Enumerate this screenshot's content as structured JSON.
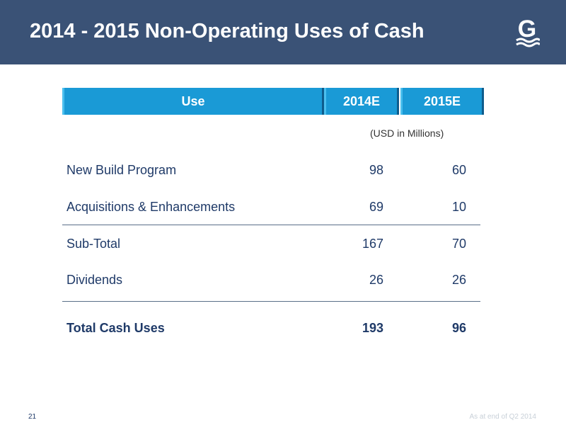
{
  "title": "2014 - 2015 Non-Operating Uses of Cash",
  "logo_letter": "G",
  "table": {
    "headers": [
      "Use",
      "2014E",
      "2015E"
    ],
    "units_note": "(USD in Millions)",
    "rows": [
      {
        "label": "New Build Program",
        "y2014": "98",
        "y2015": "60"
      },
      {
        "label": "Acquisitions & Enhancements",
        "y2014": "69",
        "y2015": "10"
      },
      {
        "label": "Sub-Total",
        "y2014": "167",
        "y2015": "70"
      },
      {
        "label": "Dividends",
        "y2014": "26",
        "y2015": "26"
      },
      {
        "label": "Total Cash Uses",
        "y2014": "193",
        "y2015": "96"
      }
    ]
  },
  "footer": {
    "page_number": "21",
    "note": "As at end of Q2 2014"
  },
  "colors": {
    "banner": "#3a5276",
    "header_fill": "#1a9ad6",
    "text": "#1f3a68"
  }
}
